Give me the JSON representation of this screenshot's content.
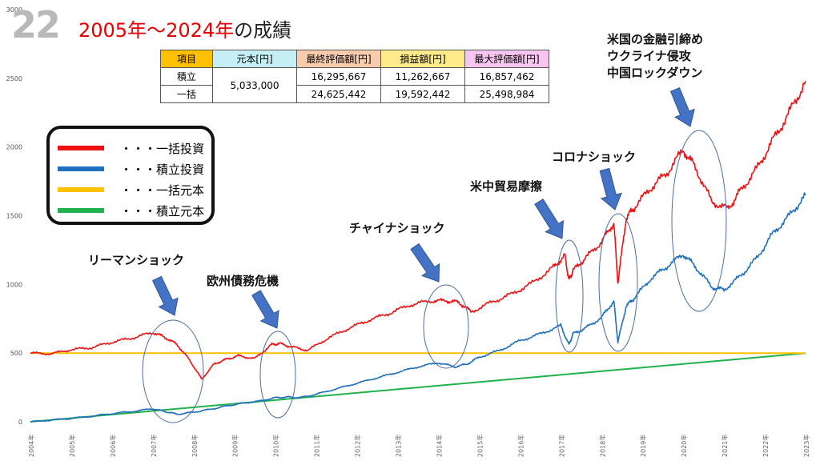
{
  "slide_number": "22",
  "title": "2005年～2024年",
  "title_suffix": "の成績",
  "summary_table": {
    "headers": [
      "項目",
      "元本[円]",
      "最終評価額[円]",
      "損益額[円]",
      "最大評価額[円]"
    ],
    "header_colors": [
      "#ffc000",
      "#c5eef5",
      "#f8cbad",
      "#ffeb8a",
      "#f7c6f0"
    ],
    "principal": "5,033,000",
    "rows": [
      {
        "label": "積立",
        "final": "16,295,667",
        "profit": "11,262,667",
        "max": "16,857,462"
      },
      {
        "label": "一括",
        "final": "24,625,442",
        "profit": "19,592,442",
        "max": "25,498,984"
      }
    ]
  },
  "legend": [
    {
      "label": "・・・一括投資",
      "color": "#ee1111"
    },
    {
      "label": "・・・積立投資",
      "color": "#1f6fbf"
    },
    {
      "label": "・・・一括元本",
      "color": "#ffc000"
    },
    {
      "label": "・・・積立元本",
      "color": "#22b14c"
    }
  ],
  "chart_data": {
    "type": "line",
    "ylim": [
      0,
      3000
    ],
    "xlim": [
      2004,
      2023
    ],
    "y_ticks": [
      0,
      500,
      1000,
      1500,
      2000,
      2500,
      3000
    ],
    "x_ticks": [
      "2004年",
      "2005年",
      "2006年",
      "2007年",
      "2008年",
      "2009年",
      "2010年",
      "2011年",
      "2012年",
      "2013年",
      "2014年",
      "2015年",
      "2016年",
      "2017年",
      "2018年",
      "2019年",
      "2020年",
      "2021年",
      "2022年",
      "2023年"
    ],
    "grid": false,
    "series": [
      {
        "key": "lump",
        "color": "#ee1111",
        "x": [
          2004.0,
          2004.5,
          2005.0,
          2005.5,
          2006.0,
          2006.5,
          2007.0,
          2007.3,
          2007.6,
          2007.9,
          2008.2,
          2008.5,
          2008.8,
          2009.1,
          2009.5,
          2009.9,
          2010.1,
          2010.4,
          2010.8,
          2011.3,
          2011.8,
          2012.3,
          2012.8,
          2013.3,
          2013.8,
          2014.2,
          2014.5,
          2014.8,
          2015.3,
          2015.8,
          2016.3,
          2016.8,
          2017.1,
          2017.2,
          2017.3,
          2017.6,
          2018.0,
          2018.3,
          2018.4,
          2018.6,
          2018.8,
          2019.2,
          2019.6,
          2020.0,
          2020.3,
          2020.7,
          2021.1,
          2021.4,
          2021.8,
          2022.2,
          2022.6,
          2023.0
        ],
        "y": [
          500,
          495,
          525,
          540,
          580,
          610,
          650,
          615,
          560,
          450,
          310,
          420,
          455,
          480,
          460,
          560,
          570,
          545,
          520,
          610,
          680,
          740,
          790,
          850,
          880,
          880,
          870,
          800,
          870,
          930,
          1010,
          1120,
          1210,
          1030,
          1100,
          1190,
          1310,
          1450,
          1010,
          1480,
          1560,
          1700,
          1810,
          1980,
          1850,
          1600,
          1550,
          1680,
          1840,
          2050,
          2250,
          2480
        ]
      },
      {
        "key": "dca",
        "color": "#1f6fbf",
        "x": [
          2004.0,
          2004.5,
          2005.0,
          2005.5,
          2006.0,
          2006.5,
          2007.0,
          2007.3,
          2007.6,
          2008.0,
          2008.4,
          2008.8,
          2009.2,
          2009.6,
          2010.0,
          2010.3,
          2010.6,
          2011.0,
          2011.5,
          2012.0,
          2012.5,
          2013.0,
          2013.5,
          2014.0,
          2014.4,
          2014.7,
          2015.0,
          2015.5,
          2016.0,
          2016.5,
          2017.0,
          2017.2,
          2017.3,
          2017.6,
          2018.0,
          2018.3,
          2018.4,
          2018.6,
          2018.8,
          2019.2,
          2019.6,
          2020.0,
          2020.3,
          2020.7,
          2021.0,
          2021.4,
          2021.8,
          2022.2,
          2022.6,
          2023.0
        ],
        "y": [
          0,
          12,
          25,
          40,
          60,
          75,
          95,
          75,
          55,
          70,
          90,
          115,
          135,
          150,
          175,
          180,
          175,
          200,
          240,
          280,
          320,
          360,
          400,
          430,
          400,
          420,
          470,
          520,
          590,
          640,
          700,
          560,
          640,
          680,
          760,
          880,
          580,
          840,
          900,
          1040,
          1130,
          1220,
          1130,
          980,
          960,
          1060,
          1190,
          1370,
          1500,
          1650
        ]
      },
      {
        "key": "lump_principal",
        "color": "#ffc000",
        "x": [
          2004,
          2023
        ],
        "y": [
          500,
          500
        ]
      },
      {
        "key": "dca_principal",
        "color": "#22b14c",
        "x": [
          2004,
          2023
        ],
        "y": [
          0,
          500
        ]
      }
    ],
    "annotations": [
      {
        "text": "リーマンショック",
        "x": 2007.5,
        "y": 300
      },
      {
        "text": "欧州債務危機",
        "x": 2009.9,
        "y": 560
      },
      {
        "text": "チャイナショック",
        "x": 2014.5,
        "y": 880
      },
      {
        "text": "米中貿易摩擦",
        "x": 2017.2,
        "y": 1200
      },
      {
        "text": "コロナショック",
        "x": 2018.4,
        "y": 1450
      },
      {
        "text": "米国の金融引締め",
        "x": 2020.4,
        "y": 1980
      },
      {
        "text": "ウクライナ侵攻",
        "x": 2020.4,
        "y": 1980
      },
      {
        "text": "中国ロックダウン",
        "x": 2020.4,
        "y": 1980
      }
    ]
  }
}
